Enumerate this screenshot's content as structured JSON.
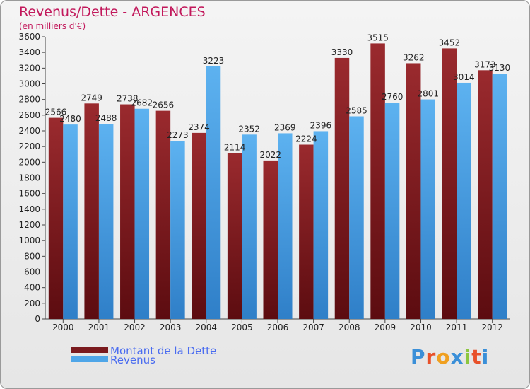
{
  "header": {
    "title": "Revenus/Dette - ARGENCES",
    "subtitle": "(en milliers d'€)"
  },
  "legend": [
    {
      "label": "Montant de la Dette",
      "color": "#7a1a1e"
    },
    {
      "label": "Revenus",
      "color": "#4fa6e8"
    }
  ],
  "logo": {
    "text": "Proxiti",
    "letters": [
      "P",
      "r",
      "o",
      "x",
      "i",
      "t",
      "i"
    ],
    "colors": [
      "#3a8fd8",
      "#e8512a",
      "#f0a020",
      "#3a8fd8",
      "#8cc63f",
      "#e8512a",
      "#3a8fd8"
    ]
  },
  "chart_data": {
    "type": "bar",
    "title": "Revenus/Dette - ARGENCES",
    "subtitle": "(en milliers d'€)",
    "categories": [
      "2000",
      "2001",
      "2002",
      "2003",
      "2004",
      "2005",
      "2006",
      "2007",
      "2008",
      "2009",
      "2010",
      "2011",
      "2012"
    ],
    "series": [
      {
        "name": "Montant de la Dette",
        "color": "#7a1a1e",
        "values": [
          2566,
          2749,
          2738,
          2656,
          2374,
          2114,
          2022,
          2224,
          3330,
          3515,
          3262,
          3452,
          3173
        ]
      },
      {
        "name": "Revenus",
        "color": "#4fa6e8",
        "values": [
          2480,
          2488,
          2682,
          2273,
          3223,
          2352,
          2369,
          2396,
          2585,
          2760,
          2801,
          3014,
          3130
        ]
      }
    ],
    "ylim": [
      0,
      3600
    ],
    "yticks": [
      0,
      200,
      400,
      600,
      800,
      1000,
      1200,
      1400,
      1600,
      1800,
      2000,
      2200,
      2400,
      2600,
      2800,
      3000,
      3200,
      3400,
      3600
    ],
    "grid": false,
    "legend_position": "bottom-left"
  }
}
